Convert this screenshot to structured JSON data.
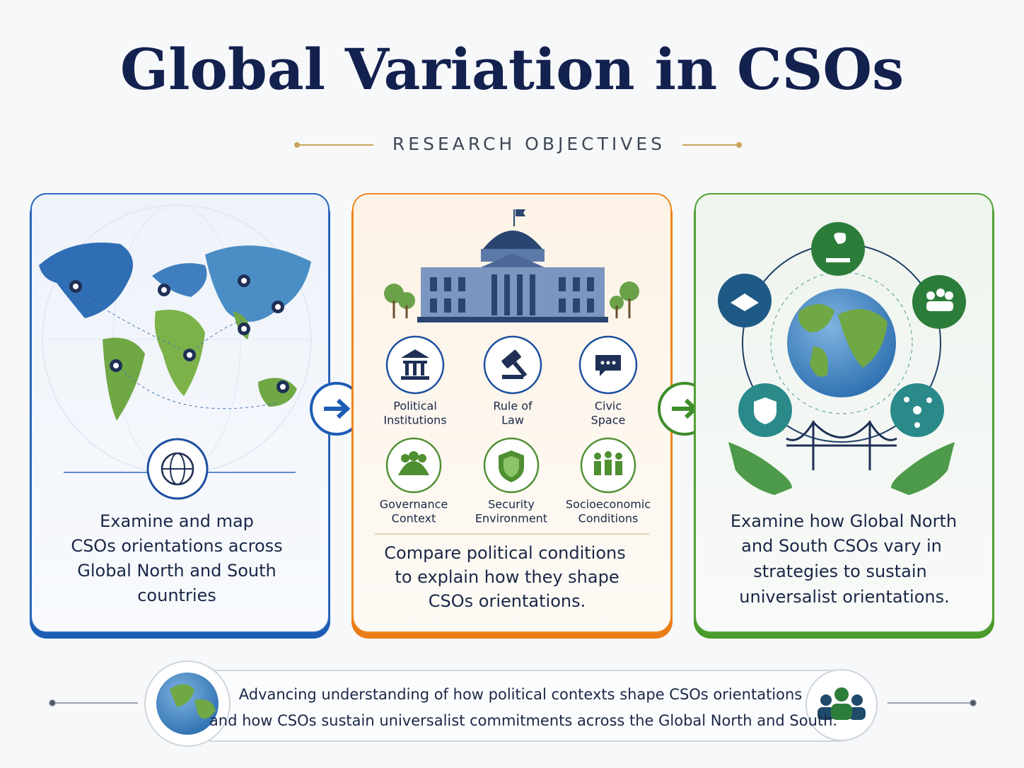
{
  "header": {
    "title": "Global Variation in CSOs",
    "subtitle": "RESEARCH OBJECTIVES"
  },
  "cards": [
    {
      "text_lines": [
        "Examine and map",
        "CSOs orientations across",
        "Global North and South",
        "countries"
      ]
    },
    {
      "factors": [
        [
          "Political",
          "Institutions"
        ],
        [
          "Rule of",
          "Law"
        ],
        [
          "Civic",
          "Space"
        ],
        [
          "Governance",
          "Context"
        ],
        [
          "Security",
          "Environment"
        ],
        [
          "Socioeconomic",
          "Conditions"
        ]
      ],
      "text_lines": [
        "Compare political conditions",
        "to explain how they shape",
        "CSOs orientations."
      ]
    },
    {
      "text_lines": [
        "Examine how Global North",
        "and South CSOs vary in",
        "strategies to sustain",
        "universalist orientations."
      ]
    }
  ],
  "footer": {
    "text_lines": [
      "Advancing understanding of how political contexts shape CSOs orientations",
      "and how CSOs sustain universalist commitments across the Global North and South."
    ]
  }
}
